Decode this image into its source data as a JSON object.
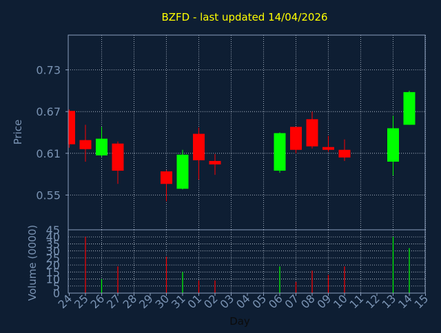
{
  "colors": {
    "background": "#0e1e33",
    "axis": "#8ca0bf",
    "grid": "#c8d2e0",
    "title": "#ffff00",
    "label": "#7a93b3",
    "up": "#00ff00",
    "down": "#ff0000"
  },
  "chart_data": {
    "type": "candlestick",
    "title": "BZFD - last updated 14/04/2026",
    "xlabel": "Day",
    "ylabel_price": "Price",
    "ylabel_volume": "Volume (0000)",
    "grid": true,
    "x_ticks": [
      "24",
      "25",
      "26",
      "27",
      "28",
      "29",
      "30",
      "31",
      "01",
      "02",
      "03",
      "04",
      "05",
      "06",
      "07",
      "08",
      "09",
      "10",
      "11",
      "12",
      "13",
      "14",
      "15"
    ],
    "price_ylim": [
      0.5,
      0.78
    ],
    "price_ticks": [
      "0.73",
      "0.67",
      "0.61",
      "0.55"
    ],
    "price_tick_values": [
      0.73,
      0.67,
      0.61,
      0.55
    ],
    "volume_ylim": [
      0,
      45
    ],
    "volume_ticks": [
      "0",
      "5",
      "10",
      "15",
      "20",
      "25",
      "30",
      "35",
      "40",
      "45"
    ],
    "volume_tick_values": [
      0,
      5,
      10,
      15,
      20,
      25,
      30,
      35,
      40,
      45
    ],
    "candles": [
      {
        "day": "24",
        "open": 0.671,
        "high": 0.673,
        "low": 0.618,
        "close": 0.623
      },
      {
        "day": "25",
        "open": 0.629,
        "high": 0.651,
        "low": 0.598,
        "close": 0.616
      },
      {
        "day": "26",
        "open": 0.607,
        "high": 0.648,
        "low": 0.605,
        "close": 0.631
      },
      {
        "day": "27",
        "open": 0.624,
        "high": 0.627,
        "low": 0.566,
        "close": 0.585
      },
      {
        "day": "30",
        "open": 0.584,
        "high": 0.586,
        "low": 0.541,
        "close": 0.566
      },
      {
        "day": "31",
        "open": 0.559,
        "high": 0.615,
        "low": 0.558,
        "close": 0.608
      },
      {
        "day": "01",
        "open": 0.638,
        "high": 0.647,
        "low": 0.572,
        "close": 0.6
      },
      {
        "day": "02",
        "open": 0.599,
        "high": 0.609,
        "low": 0.579,
        "close": 0.594
      },
      {
        "day": "06",
        "open": 0.585,
        "high": 0.64,
        "low": 0.582,
        "close": 0.639
      },
      {
        "day": "07",
        "open": 0.648,
        "high": 0.648,
        "low": 0.61,
        "close": 0.615
      },
      {
        "day": "08",
        "open": 0.659,
        "high": 0.67,
        "low": 0.617,
        "close": 0.62
      },
      {
        "day": "09",
        "open": 0.619,
        "high": 0.635,
        "low": 0.612,
        "close": 0.615
      },
      {
        "day": "10",
        "open": 0.615,
        "high": 0.63,
        "low": 0.599,
        "close": 0.604
      },
      {
        "day": "13",
        "open": 0.598,
        "high": 0.664,
        "low": 0.578,
        "close": 0.646
      },
      {
        "day": "14",
        "open": 0.651,
        "high": 0.7,
        "low": 0.651,
        "close": 0.698
      }
    ],
    "volume": [
      {
        "day": "24",
        "value": 0
      },
      {
        "day": "25",
        "value": 40
      },
      {
        "day": "26",
        "value": 10
      },
      {
        "day": "27",
        "value": 19
      },
      {
        "day": "30",
        "value": 26
      },
      {
        "day": "31",
        "value": 15
      },
      {
        "day": "01",
        "value": 9
      },
      {
        "day": "02",
        "value": 9
      },
      {
        "day": "06",
        "value": 19
      },
      {
        "day": "07",
        "value": 8
      },
      {
        "day": "08",
        "value": 16
      },
      {
        "day": "09",
        "value": 13
      },
      {
        "day": "10",
        "value": 19
      },
      {
        "day": "13",
        "value": 40
      },
      {
        "day": "14",
        "value": 32
      }
    ]
  }
}
